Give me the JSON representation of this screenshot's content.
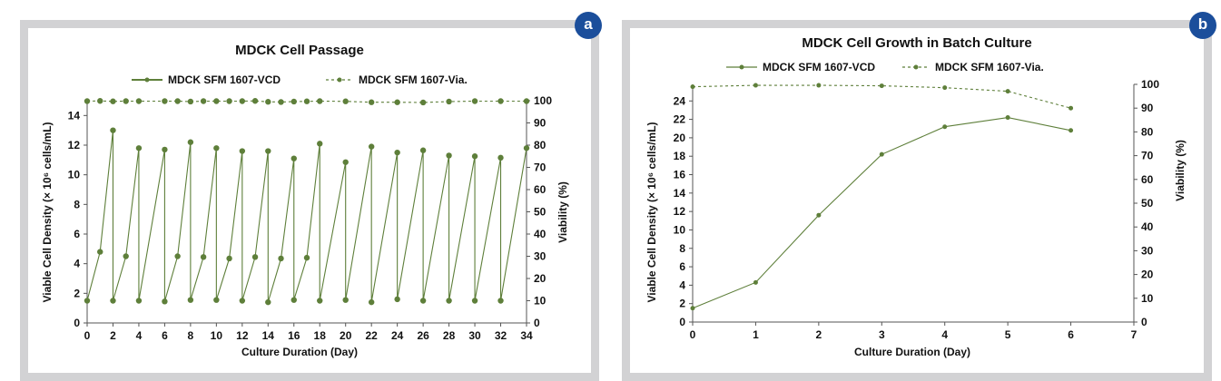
{
  "panels": {
    "a": "a",
    "b": "b"
  },
  "colors": {
    "series": "#5e7f3a",
    "frame": "#d2d2d4",
    "badge": "#1b4e9b"
  },
  "chart_data": [
    {
      "type": "line",
      "title": "MDCK Cell Passage",
      "xlabel": "Culture Duration (Day)",
      "ylabel": "Viable Cell Density  (× 10⁶ cells/mL)",
      "y2label": "Viability (%)",
      "xlim": [
        0,
        34
      ],
      "ylim": [
        0,
        15
      ],
      "y2lim": [
        0,
        100
      ],
      "xticks": [
        0,
        2,
        4,
        6,
        8,
        10,
        12,
        14,
        16,
        18,
        20,
        22,
        24,
        26,
        28,
        30,
        32,
        34
      ],
      "yticks": [
        0,
        2,
        4,
        6,
        8,
        10,
        12,
        14
      ],
      "y2ticks": [
        0,
        10,
        20,
        30,
        40,
        50,
        60,
        70,
        80,
        90,
        100
      ],
      "legend": [
        "MDCK SFM 1607-VCD",
        "MDCK SFM 1607-Via."
      ],
      "series": [
        {
          "name": "MDCK SFM 1607-VCD",
          "axis": "left",
          "x": [
            0,
            1,
            2,
            2,
            3,
            4,
            4,
            6,
            6,
            7,
            8,
            8,
            9,
            10,
            10,
            11,
            12,
            12,
            13,
            14,
            14,
            15,
            16,
            16,
            17,
            18,
            18,
            20,
            20,
            22,
            22,
            24,
            24,
            26,
            26,
            28,
            28,
            30,
            30,
            32,
            32,
            34
          ],
          "y": [
            1.5,
            4.8,
            13.0,
            1.5,
            4.5,
            11.8,
            1.5,
            11.7,
            1.45,
            4.5,
            12.2,
            1.55,
            4.45,
            11.8,
            1.55,
            4.35,
            11.6,
            1.5,
            4.45,
            11.6,
            1.4,
            4.35,
            11.1,
            1.55,
            4.4,
            12.1,
            1.5,
            10.85,
            1.55,
            11.9,
            1.4,
            11.5,
            1.6,
            11.65,
            1.5,
            11.3,
            1.5,
            11.25,
            1.5,
            11.15,
            1.5,
            11.8
          ]
        },
        {
          "name": "MDCK SFM 1607-Via.",
          "axis": "right",
          "x": [
            0,
            1,
            2,
            3,
            4,
            6,
            7,
            8,
            9,
            10,
            11,
            12,
            13,
            14,
            15,
            16,
            17,
            18,
            20,
            22,
            24,
            26,
            28,
            30,
            32,
            34
          ],
          "y": [
            99.8,
            99.9,
            99.7,
            99.8,
            99.8,
            99.8,
            99.8,
            99.6,
            99.8,
            99.8,
            99.8,
            99.8,
            99.9,
            99.5,
            99.4,
            99.6,
            99.7,
            99.8,
            99.7,
            99.3,
            99.3,
            99.2,
            99.6,
            99.8,
            99.8,
            99.8
          ]
        }
      ]
    },
    {
      "type": "line",
      "title": "MDCK Cell Growth in Batch Culture",
      "xlabel": "Culture Duration (Day)",
      "ylabel": "Viable Cell Density  (× 10⁶ cells/mL)",
      "y2label": "Viability (%)",
      "xlim": [
        0,
        7
      ],
      "ylim": [
        0,
        25.8
      ],
      "y2lim": [
        0,
        100
      ],
      "xticks": [
        0,
        1,
        2,
        3,
        4,
        5,
        6,
        7
      ],
      "yticks": [
        0,
        2,
        4,
        6,
        8,
        10,
        12,
        14,
        16,
        18,
        20,
        22,
        24
      ],
      "y2ticks": [
        0,
        10,
        20,
        30,
        40,
        50,
        60,
        70,
        80,
        90,
        100
      ],
      "legend": [
        "MDCK SFM 1607-VCD",
        "MDCK SFM 1607-Via."
      ],
      "series": [
        {
          "name": "MDCK SFM 1607-VCD",
          "axis": "left",
          "x": [
            0,
            1,
            2,
            3,
            4,
            5,
            6
          ],
          "y": [
            1.5,
            4.3,
            11.6,
            18.2,
            21.2,
            22.2,
            20.8
          ]
        },
        {
          "name": "MDCK SFM 1607-Via.",
          "axis": "right",
          "x": [
            0,
            1,
            2,
            3,
            4,
            5,
            6
          ],
          "y": [
            99.0,
            99.6,
            99.6,
            99.4,
            98.6,
            97.1,
            90.0
          ]
        }
      ]
    }
  ]
}
